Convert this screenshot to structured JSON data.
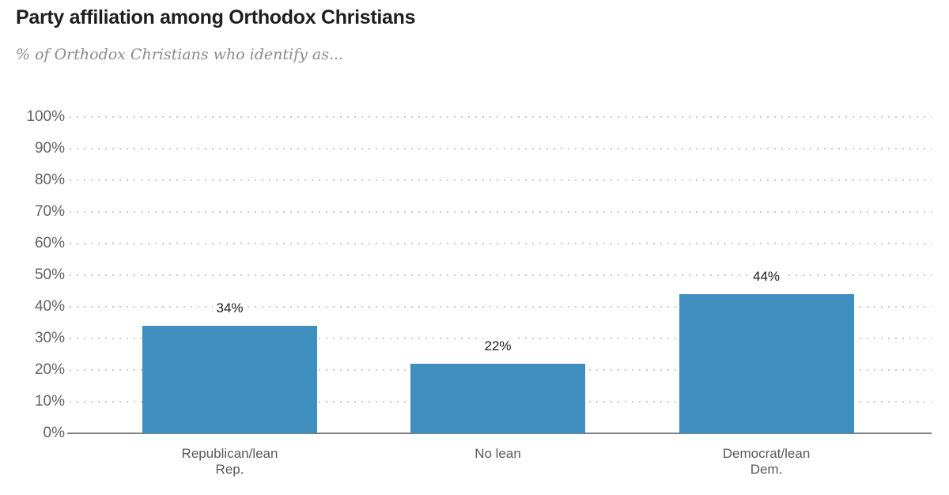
{
  "chart_data": {
    "type": "bar",
    "title": "Party affiliation among Orthodox Christians",
    "subtitle": "% of Orthodox Christians who identify as...",
    "categories": [
      "Republican/lean Rep.",
      "No lean",
      "Democrat/lean Dem."
    ],
    "category_lines": [
      [
        "Republican/lean",
        "Rep."
      ],
      [
        "No lean"
      ],
      [
        "Democrat/lean",
        "Dem."
      ]
    ],
    "values": [
      34,
      22,
      44
    ],
    "value_labels": [
      "34%",
      "22%",
      "44%"
    ],
    "xlabel": "",
    "ylabel": "",
    "ylim": [
      0,
      100
    ],
    "y_tick_interval": 10,
    "y_ticks": [
      {
        "label": "100%",
        "value": 100
      },
      {
        "label": "90%",
        "value": 90
      },
      {
        "label": "80%",
        "value": 80
      },
      {
        "label": "70%",
        "value": 70
      },
      {
        "label": "60%",
        "value": 60
      },
      {
        "label": "50%",
        "value": 50
      },
      {
        "label": "40%",
        "value": 40
      },
      {
        "label": "30%",
        "value": 30
      },
      {
        "label": "20%",
        "value": 20
      },
      {
        "label": "10%",
        "value": 10
      },
      {
        "label": "0%",
        "value": 0
      }
    ],
    "grid": "horizontal-dotted",
    "legend": "none",
    "colors": {
      "bar": "#3e8ec0",
      "title": "#1f1f1f",
      "subtitle": "#8b8b8b",
      "axis_label": "#636363",
      "category_label": "#5a5a5b",
      "value_label": "#1a1a1a",
      "gridline": "#c9c9c9",
      "axis_line": "#7f7f7f",
      "background": "#ffffff"
    }
  }
}
